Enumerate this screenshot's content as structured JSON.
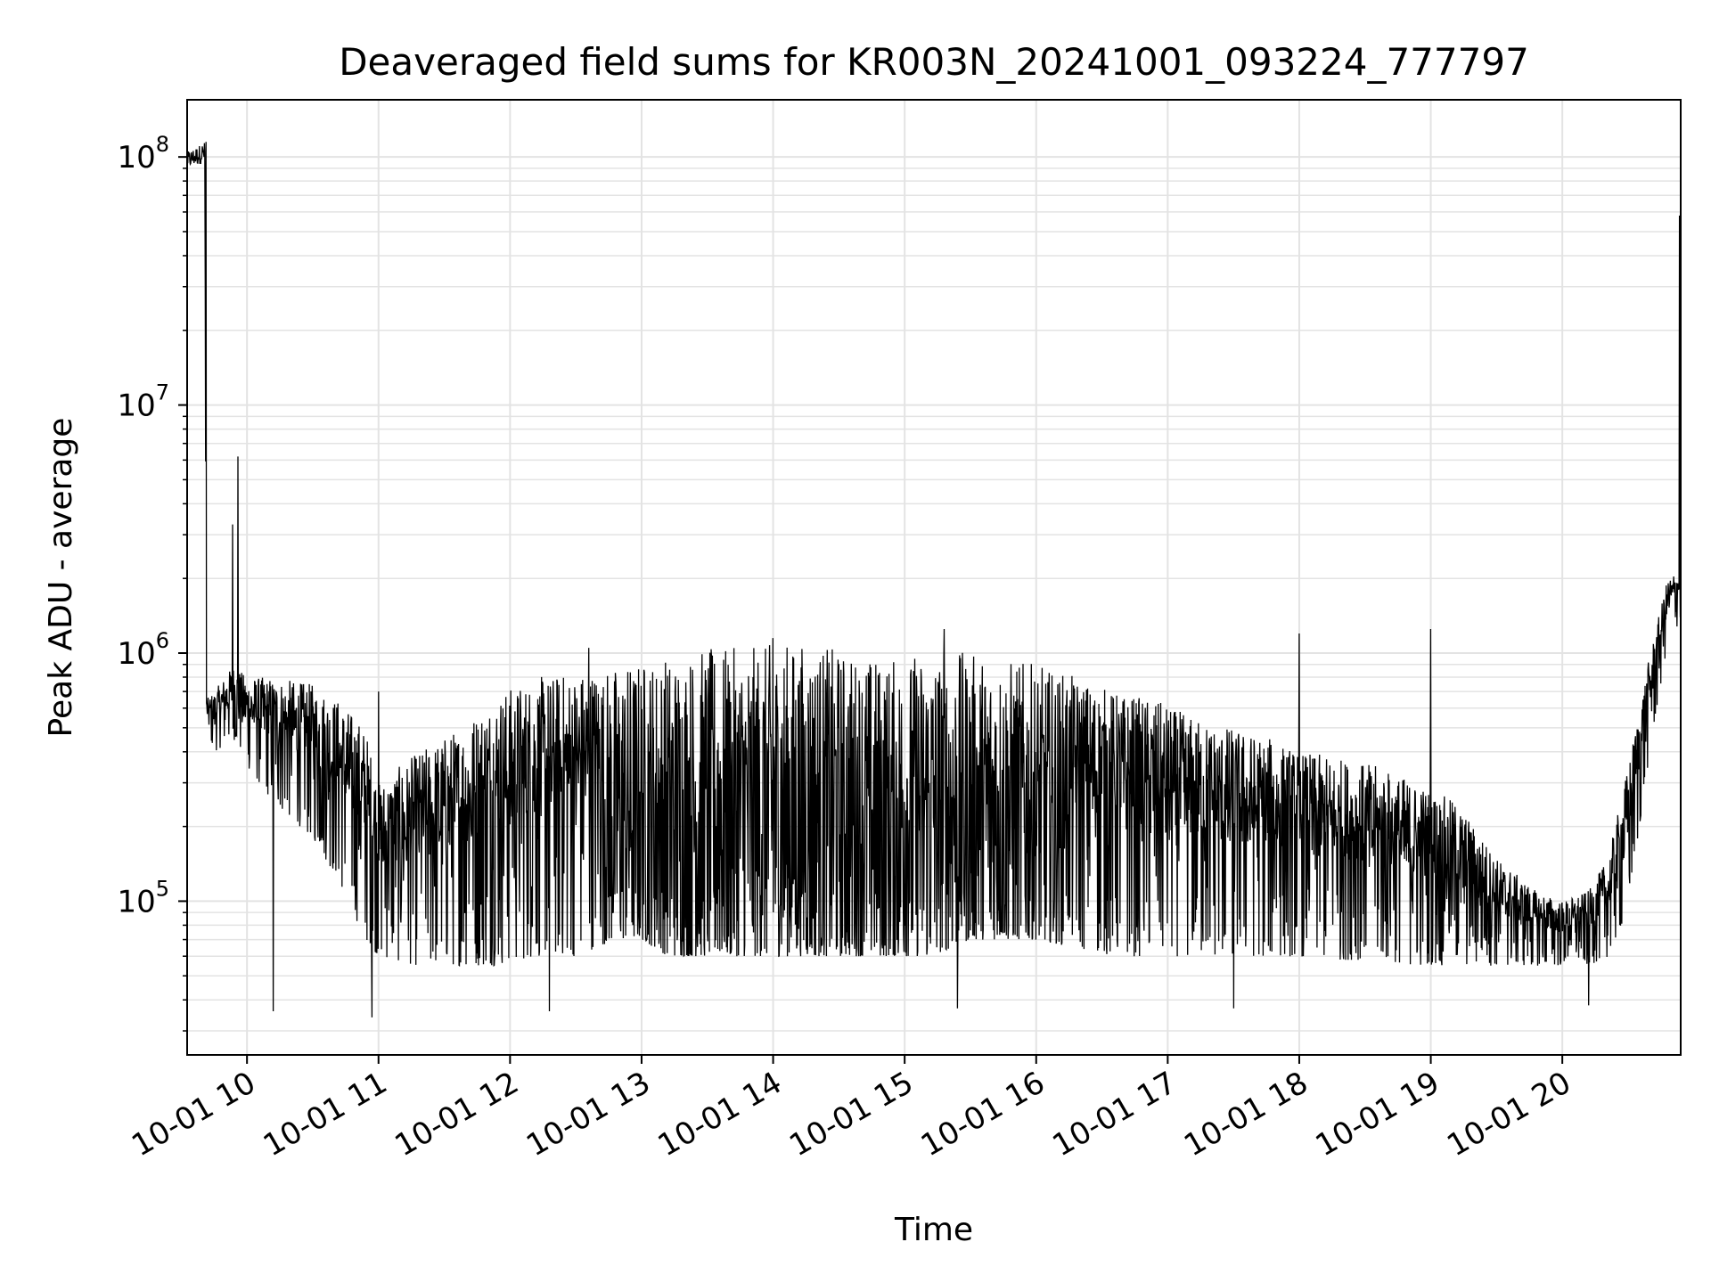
{
  "chart_data": {
    "type": "line",
    "title": "Deaveraged field sums for KR003N_20241001_093224_777797",
    "xlabel": "Time",
    "ylabel": "Peak ADU - average",
    "yscale": "log",
    "grid": true,
    "x_range_hours": [
      9.545,
      20.9
    ],
    "ylim": [
      24000,
      170000000
    ],
    "x_ticks": [
      {
        "value": 10,
        "label": "10-01 10"
      },
      {
        "value": 11,
        "label": "10-01 11"
      },
      {
        "value": 12,
        "label": "10-01 12"
      },
      {
        "value": 13,
        "label": "10-01 13"
      },
      {
        "value": 14,
        "label": "10-01 14"
      },
      {
        "value": 15,
        "label": "10-01 15"
      },
      {
        "value": 16,
        "label": "10-01 16"
      },
      {
        "value": 17,
        "label": "10-01 17"
      },
      {
        "value": 18,
        "label": "10-01 18"
      },
      {
        "value": 19,
        "label": "10-01 19"
      },
      {
        "value": 20,
        "label": "10-01 20"
      }
    ],
    "y_ticks": [
      {
        "value": 100000,
        "base": "10",
        "exp": "5"
      },
      {
        "value": 1000000,
        "base": "10",
        "exp": "6"
      },
      {
        "value": 10000000,
        "base": "10",
        "exp": "7"
      },
      {
        "value": 100000000,
        "base": "10",
        "exp": "8"
      }
    ],
    "series_color": "#000000",
    "envelope": {
      "hours": [
        9.55,
        9.68,
        9.69,
        9.75,
        9.9,
        10.0,
        10.2,
        10.5,
        10.7,
        10.9,
        11.0,
        11.3,
        11.6,
        11.9,
        12.2,
        12.5,
        12.8,
        13.0,
        13.2,
        13.5,
        13.8,
        14.0,
        14.3,
        14.6,
        14.9,
        15.2,
        15.5,
        15.8,
        16.0,
        16.3,
        16.6,
        16.9,
        17.2,
        17.5,
        17.8,
        18.0,
        18.3,
        18.6,
        18.9,
        19.2,
        19.5,
        19.8,
        20.0,
        20.2,
        20.35,
        20.5,
        20.65,
        20.8,
        20.88,
        20.9
      ],
      "low": [
        90000000,
        95000000,
        500000,
        400000,
        450000,
        350000,
        250000,
        180000,
        120000,
        70000,
        60000,
        55000,
        55000,
        55000,
        60000,
        60000,
        70000,
        70000,
        60000,
        60000,
        60000,
        60000,
        60000,
        60000,
        60000,
        60000,
        70000,
        70000,
        70000,
        65000,
        60000,
        60000,
        60000,
        60000,
        60000,
        60000,
        58000,
        58000,
        55000,
        55000,
        55000,
        55000,
        55000,
        55000,
        60000,
        90000,
        350000,
        1100000,
        1300000,
        1300000
      ],
      "high": [
        105000000,
        115000000,
        650000,
        700000,
        900000,
        800000,
        800000,
        750000,
        650000,
        500000,
        300000,
        400000,
        500000,
        700000,
        800000,
        850000,
        900000,
        950000,
        1000000,
        1050000,
        1050000,
        1100000,
        1100000,
        1000000,
        950000,
        1050000,
        1000000,
        950000,
        900000,
        800000,
        700000,
        650000,
        550000,
        500000,
        450000,
        400000,
        380000,
        350000,
        300000,
        250000,
        150000,
        110000,
        100000,
        110000,
        150000,
        350000,
        900000,
        2000000,
        2200000,
        2200000
      ]
    },
    "spikes": [
      {
        "hour": 9.69,
        "value": 115000000
      },
      {
        "hour": 9.93,
        "value": 6200000
      },
      {
        "hour": 9.89,
        "value": 3300000
      },
      {
        "hour": 10.2,
        "value": 1000000
      },
      {
        "hour": 11.0,
        "value": 700000
      },
      {
        "hour": 12.6,
        "value": 1050000
      },
      {
        "hour": 14.0,
        "value": 1150000
      },
      {
        "hour": 15.3,
        "value": 1250000
      },
      {
        "hour": 18.0,
        "value": 1200000
      },
      {
        "hour": 19.0,
        "value": 1250000
      },
      {
        "hour": 20.89,
        "value": 58000000
      }
    ],
    "dips": [
      {
        "hour": 10.2,
        "value": 36000
      },
      {
        "hour": 10.95,
        "value": 34000
      },
      {
        "hour": 12.3,
        "value": 36000
      },
      {
        "hour": 15.4,
        "value": 37000
      },
      {
        "hour": 17.5,
        "value": 37000
      },
      {
        "hour": 20.2,
        "value": 38000
      }
    ]
  }
}
